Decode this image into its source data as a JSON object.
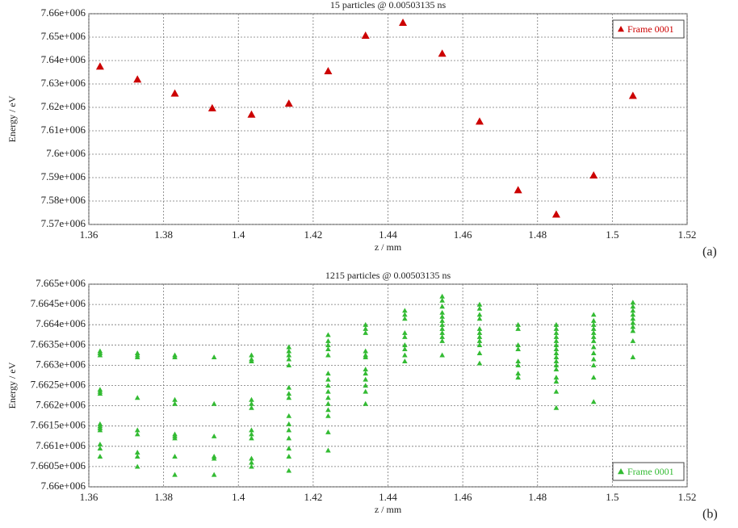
{
  "chart_data": [
    {
      "type": "scatter",
      "title": "15 particles @ 0.00503135 ns",
      "panel_label": "(a)",
      "x_label": "z / mm",
      "y_label": "Energy / eV",
      "xlim": [
        1.36,
        1.52
      ],
      "xticks": [
        1.36,
        1.38,
        1.4,
        1.42,
        1.44,
        1.46,
        1.48,
        1.5,
        1.52
      ],
      "ylim": [
        7570000,
        7660000
      ],
      "yticks": [
        {
          "value": 7570000,
          "label": "7.57e+006"
        },
        {
          "value": 7580000,
          "label": "7.58e+006"
        },
        {
          "value": 7590000,
          "label": "7.59e+006"
        },
        {
          "value": 7600000,
          "label": "7.6e+006"
        },
        {
          "value": 7610000,
          "label": "7.61e+006"
        },
        {
          "value": 7620000,
          "label": "7.62e+006"
        },
        {
          "value": 7630000,
          "label": "7.63e+006"
        },
        {
          "value": 7640000,
          "label": "7.64e+006"
        },
        {
          "value": 7650000,
          "label": "7.65e+006"
        },
        {
          "value": 7660000,
          "label": "7.66e+006"
        }
      ],
      "grid": true,
      "legend": "upper right",
      "series": [
        {
          "name": "Frame 0001",
          "color": "#cc0000",
          "x": [
            1.363,
            1.373,
            1.383,
            1.393,
            1.4035,
            1.4135,
            1.424,
            1.434,
            1.444,
            1.4545,
            1.4645,
            1.4748,
            1.485,
            1.495,
            1.5055
          ],
          "values": [
            7637500,
            7632000,
            7626000,
            7619700,
            7617000,
            7621700,
            7635500,
            7650700,
            7656200,
            7643000,
            7614000,
            7584700,
            7574300,
            7591000,
            7625000
          ]
        }
      ]
    },
    {
      "type": "scatter",
      "title": "1215 particles @ 0.00503135 ns",
      "panel_label": "(b)",
      "x_label": "z / mm",
      "y_label": "Energy / eV",
      "xlim": [
        1.36,
        1.52
      ],
      "xticks": [
        1.36,
        1.38,
        1.4,
        1.42,
        1.44,
        1.46,
        1.48,
        1.5,
        1.52
      ],
      "ylim": [
        7660000,
        7665000
      ],
      "yticks": [
        {
          "value": 7660000,
          "label": "7.66e+006"
        },
        {
          "value": 7660500,
          "label": "7.6605e+006"
        },
        {
          "value": 7661000,
          "label": "7.661e+006"
        },
        {
          "value": 7661500,
          "label": "7.6615e+006"
        },
        {
          "value": 7662000,
          "label": "7.662e+006"
        },
        {
          "value": 7662500,
          "label": "7.6625e+006"
        },
        {
          "value": 7663000,
          "label": "7.663e+006"
        },
        {
          "value": 7663500,
          "label": "7.6635e+006"
        },
        {
          "value": 7664000,
          "label": "7.664e+006"
        },
        {
          "value": 7664500,
          "label": "7.6645e+006"
        },
        {
          "value": 7665000,
          "label": "7.665e+006"
        }
      ],
      "grid": true,
      "legend": "lower right",
      "series": [
        {
          "name": "Frame 0001",
          "color": "#33bb33",
          "x": [
            1.363,
            1.363,
            1.363,
            1.363,
            1.363,
            1.363,
            1.363,
            1.363,
            1.363,
            1.363,
            1.363,
            1.363,
            1.363,
            1.373,
            1.373,
            1.373,
            1.373,
            1.373,
            1.373,
            1.373,
            1.373,
            1.373,
            1.383,
            1.383,
            1.383,
            1.383,
            1.383,
            1.383,
            1.383,
            1.383,
            1.383,
            1.3935,
            1.3935,
            1.3935,
            1.3935,
            1.3935,
            1.3935,
            1.4035,
            1.4035,
            1.4035,
            1.4035,
            1.4035,
            1.4035,
            1.4035,
            1.4035,
            1.4035,
            1.4035,
            1.4035,
            1.4035,
            1.4135,
            1.4135,
            1.4135,
            1.4135,
            1.4135,
            1.4135,
            1.4135,
            1.4135,
            1.4135,
            1.4135,
            1.4135,
            1.4135,
            1.4135,
            1.4135,
            1.4135,
            1.424,
            1.424,
            1.424,
            1.424,
            1.424,
            1.424,
            1.424,
            1.424,
            1.424,
            1.424,
            1.424,
            1.424,
            1.424,
            1.424,
            1.424,
            1.434,
            1.434,
            1.434,
            1.434,
            1.434,
            1.434,
            1.434,
            1.434,
            1.434,
            1.434,
            1.434,
            1.434,
            1.4445,
            1.4445,
            1.4445,
            1.4445,
            1.4445,
            1.4445,
            1.4445,
            1.4445,
            1.4445,
            1.4545,
            1.4545,
            1.4545,
            1.4545,
            1.4545,
            1.4545,
            1.4545,
            1.4545,
            1.4545,
            1.4545,
            1.4545,
            1.4545,
            1.4645,
            1.4645,
            1.4645,
            1.4645,
            1.4645,
            1.4645,
            1.4645,
            1.4645,
            1.4645,
            1.4645,
            1.4645,
            1.4748,
            1.4748,
            1.4748,
            1.4748,
            1.4748,
            1.4748,
            1.4748,
            1.4748,
            1.485,
            1.485,
            1.485,
            1.485,
            1.485,
            1.485,
            1.485,
            1.485,
            1.485,
            1.485,
            1.485,
            1.485,
            1.485,
            1.485,
            1.485,
            1.485,
            1.495,
            1.495,
            1.495,
            1.495,
            1.495,
            1.495,
            1.495,
            1.495,
            1.495,
            1.495,
            1.495,
            1.495,
            1.495,
            1.5055,
            1.5055,
            1.5055,
            1.5055,
            1.5055,
            1.5055,
            1.5055,
            1.5055,
            1.5055,
            1.5055
          ],
          "values": [
            7663350,
            7663300,
            7663250,
            7662400,
            7662350,
            7662300,
            7661550,
            7661500,
            7661450,
            7661400,
            7661050,
            7660950,
            7660750,
            7663300,
            7663250,
            7663200,
            7662200,
            7661400,
            7661300,
            7660850,
            7660750,
            7660500,
            7663250,
            7663200,
            7662150,
            7662050,
            7661300,
            7661250,
            7661200,
            7660750,
            7660300,
            7663200,
            7662050,
            7661250,
            7660750,
            7660700,
            7660300,
            7663250,
            7663150,
            7663100,
            7662150,
            7662050,
            7661950,
            7661400,
            7661300,
            7661200,
            7660700,
            7660600,
            7660500,
            7663450,
            7663350,
            7663250,
            7663150,
            7663000,
            7662450,
            7662300,
            7662200,
            7661750,
            7661550,
            7661400,
            7661200,
            7660950,
            7660750,
            7660400,
            7663750,
            7663600,
            7663500,
            7663400,
            7663250,
            7662800,
            7662650,
            7662500,
            7662350,
            7662200,
            7662050,
            7661900,
            7661750,
            7661350,
            7660900,
            7664000,
            7663900,
            7663800,
            7663350,
            7663250,
            7663200,
            7662900,
            7662800,
            7662650,
            7662500,
            7662350,
            7662050,
            7664350,
            7664250,
            7664150,
            7663800,
            7663700,
            7663500,
            7663400,
            7663250,
            7663100,
            7664700,
            7664600,
            7664450,
            7664300,
            7664200,
            7664100,
            7664000,
            7663900,
            7663800,
            7663700,
            7663600,
            7663250,
            7664500,
            7664400,
            7664250,
            7664150,
            7663900,
            7663800,
            7663700,
            7663600,
            7663500,
            7663300,
            7663050,
            7664000,
            7663900,
            7663500,
            7663400,
            7663100,
            7663000,
            7662800,
            7662700,
            7664000,
            7663900,
            7663800,
            7663700,
            7663600,
            7663500,
            7663400,
            7663300,
            7663200,
            7663100,
            7663000,
            7662900,
            7662700,
            7662600,
            7662350,
            7661950,
            7664250,
            7664100,
            7664000,
            7663900,
            7663800,
            7663700,
            7663600,
            7663450,
            7663300,
            7663150,
            7663000,
            7662700,
            7662100,
            7664550,
            7664450,
            7664350,
            7664250,
            7664150,
            7664050,
            7663950,
            7663850,
            7663600,
            7663200
          ]
        }
      ]
    }
  ]
}
